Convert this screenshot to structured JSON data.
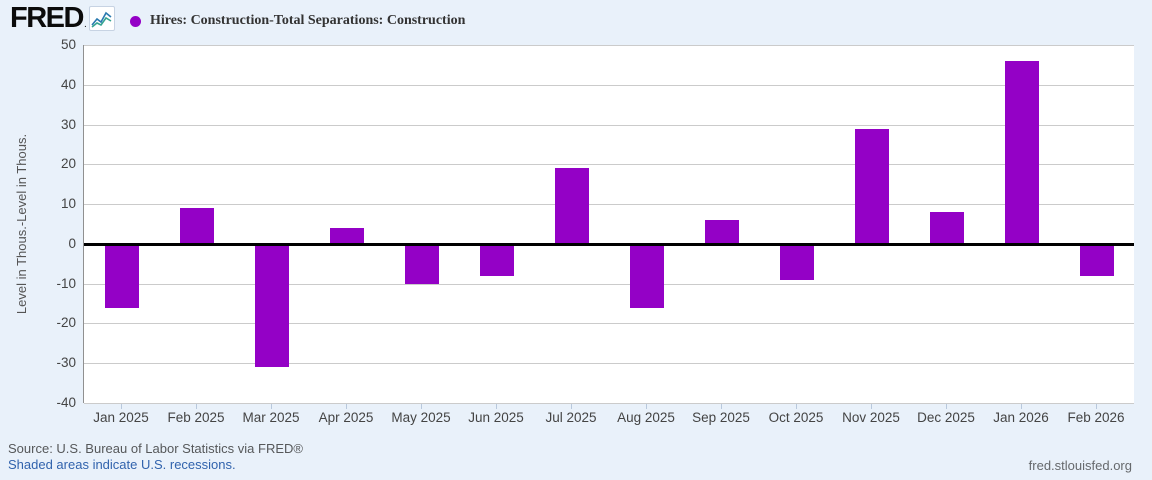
{
  "header": {
    "logo_text": "FRED",
    "logo_reg": ".",
    "series_title": "Hires: Construction-Total Separations: Construction"
  },
  "chart_data": {
    "type": "bar",
    "categories": [
      "Jan 2025",
      "Feb 2025",
      "Mar 2025",
      "Apr 2025",
      "May 2025",
      "Jun 2025",
      "Jul 2025",
      "Aug 2025",
      "Sep 2025",
      "Oct 2025",
      "Nov 2025",
      "Dec 2025",
      "Jan 2026",
      "Feb 2026"
    ],
    "values": [
      -16,
      9,
      -31,
      4,
      -10,
      -8,
      19,
      -16,
      6,
      -9,
      29,
      8,
      46,
      -8
    ],
    "series_name": "Hires: Construction-Total Separations: Construction",
    "title": "",
    "xlabel": "",
    "ylabel": "Level in Thous.-Level in Thous.",
    "ylim": [
      -40,
      50
    ],
    "ytick_step": 10,
    "grid": true,
    "zero_line": true,
    "legend_position": "top-left",
    "bar_color": "#9401c6"
  },
  "colors": {
    "accent_purple": "#9401c6",
    "background": "#e9f1fa",
    "plot_background": "#ffffff",
    "gridline": "#cbcbcb",
    "zero_line": "#000000",
    "link_blue": "#3163ad",
    "logo_line_blue": "#2a7ab0",
    "logo_line_teal": "#36a491"
  },
  "footer": {
    "source_text": "Source: U.S. Bureau of Labor Statistics via FRED®",
    "recession_note": "Shaded areas indicate U.S. recessions.",
    "site_link": "fred.stlouisfed.org"
  }
}
